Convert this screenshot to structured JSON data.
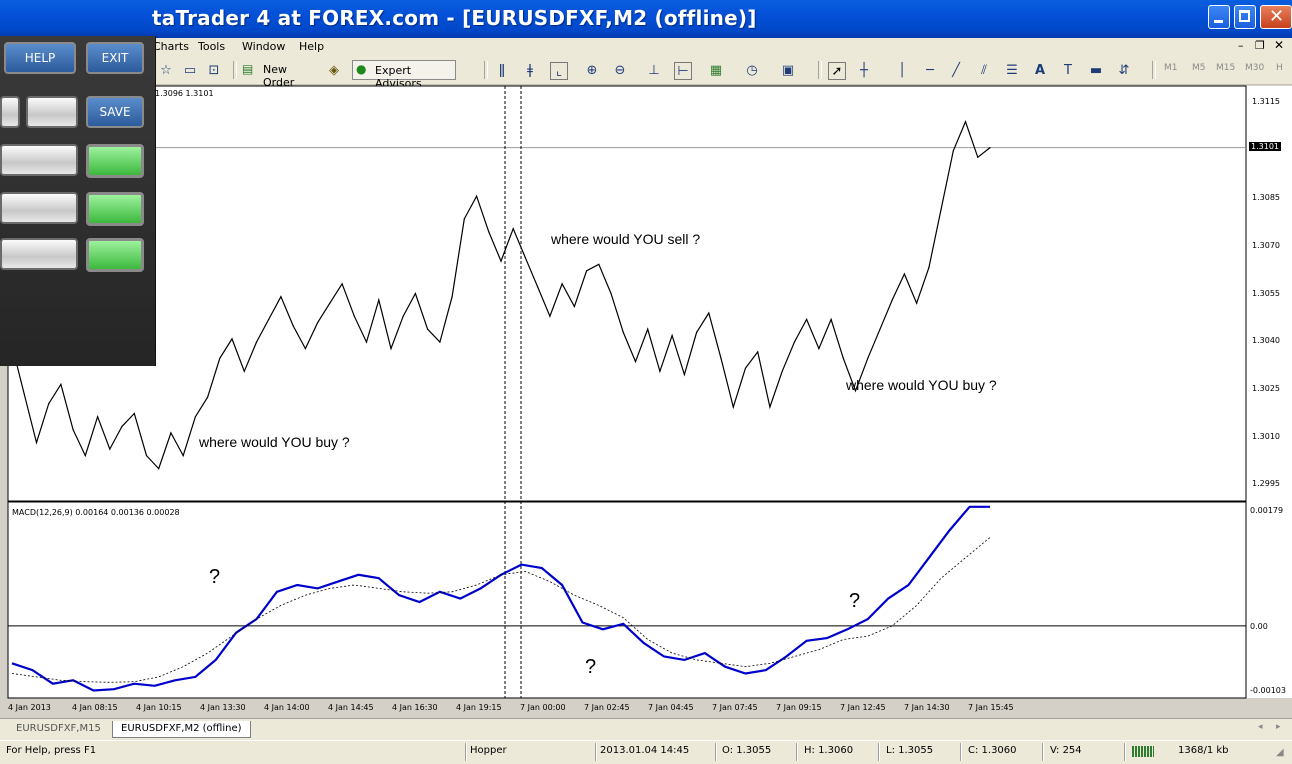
{
  "window": {
    "title": "taTrader 4 at FOREX.com - [EURUSDFXF,M2 (offline)]"
  },
  "menu": [
    "Charts",
    "Tools",
    "Window",
    "Help"
  ],
  "toolbar": {
    "new_order": "New Order",
    "expert_advisors": "Expert Advisors",
    "timeframes": [
      "M1",
      "M5",
      "M15",
      "M30",
      "H"
    ]
  },
  "panel": {
    "help": "HELP",
    "exit": "EXIT",
    "save": "SAVE"
  },
  "chart": {
    "price_header": "1.3096 1.3101",
    "macd_header": "MACD(12,26,9) 0.00164 0.00136 0.00028",
    "current_price": "1.3101",
    "price_ticks": [
      "1.3115",
      "1.3101",
      "1.3085",
      "1.3070",
      "1.3055",
      "1.3040",
      "1.3025",
      "1.3010",
      "1.2995"
    ],
    "macd_ticks": [
      "0.00179",
      "0.00",
      "-0.00103"
    ],
    "time_ticks": [
      "4 Jan 2013",
      "4 Jan 08:15",
      "4 Jan 10:15",
      "4 Jan 13:30",
      "4 Jan 14:00",
      "4 Jan 14:45",
      "4 Jan 16:30",
      "4 Jan 19:15",
      "7 Jan 00:00",
      "7 Jan 02:45",
      "7 Jan 04:45",
      "7 Jan 07:45",
      "7 Jan 09:15",
      "7 Jan 12:45",
      "7 Jan 14:30",
      "7 Jan 15:45"
    ],
    "annotations": {
      "buy1": "where would YOU buy ?",
      "sell": "where would YOU sell ?",
      "buy2": "where would YOU buy ?",
      "q": "?"
    }
  },
  "tabs": [
    "EURUSDFXF,M15",
    "EURUSDFXF,M2 (offline)"
  ],
  "status": {
    "help": "For Help, press F1",
    "profile": "Hopper",
    "time": "2013.01.04 14:45",
    "open": "O: 1.3055",
    "high": "H: 1.3060",
    "low": "L: 1.3055",
    "close": "C: 1.3060",
    "volume": "V: 254",
    "traffic": "1368/1 kb"
  },
  "chart_data": {
    "type": "line",
    "price_series": [
      1.304,
      1.3025,
      1.301,
      1.3022,
      1.3028,
      1.3014,
      1.3006,
      1.3018,
      1.3008,
      1.3015,
      1.3019,
      1.3006,
      1.3002,
      1.3013,
      1.3006,
      1.3018,
      1.3024,
      1.3036,
      1.3042,
      1.3032,
      1.3041,
      1.3048,
      1.3055,
      1.3046,
      1.3039,
      1.3047,
      1.3053,
      1.3059,
      1.3049,
      1.3041,
      1.3054,
      1.3039,
      1.3049,
      1.3056,
      1.3045,
      1.3041,
      1.3055,
      1.3079,
      1.3086,
      1.3075,
      1.3066,
      1.3076,
      1.3067,
      1.3058,
      1.3049,
      1.3059,
      1.3052,
      1.3063,
      1.3065,
      1.3056,
      1.3044,
      1.3035,
      1.3045,
      1.3032,
      1.3043,
      1.3031,
      1.3044,
      1.305,
      1.3036,
      1.3021,
      1.3033,
      1.3038,
      1.3021,
      1.3032,
      1.3041,
      1.3048,
      1.3039,
      1.3048,
      1.3036,
      1.3026,
      1.3036,
      1.3045,
      1.3054,
      1.3062,
      1.3053,
      1.3064,
      1.3082,
      1.31,
      1.3109,
      1.3098,
      1.3101
    ],
    "macd_series": [
      -0.00055,
      -0.00065,
      -0.00085,
      -0.0008,
      -0.00095,
      -0.00093,
      -0.00085,
      -0.00088,
      -0.0008,
      -0.00075,
      -0.0005,
      -0.0001,
      0.0001,
      0.0005,
      0.0006,
      0.00055,
      0.00065,
      0.00075,
      0.0007,
      0.00045,
      0.00035,
      0.0005,
      0.0004,
      0.00055,
      0.00075,
      0.0009,
      0.00085,
      0.0006,
      5e-05,
      -5e-05,
      3e-05,
      -0.00025,
      -0.00045,
      -0.0005,
      -0.0004,
      -0.0006,
      -0.0007,
      -0.00065,
      -0.00045,
      -0.00022,
      -0.00018,
      -5e-05,
      0.0001,
      0.0004,
      0.0006,
      0.001,
      0.0014,
      0.00175,
      0.00175
    ],
    "signal_series": [
      -0.0007,
      -0.00075,
      -0.0008,
      -0.00082,
      -0.00083,
      -0.00082,
      -0.00075,
      -0.0006,
      -0.0004,
      -0.00015,
      0.0001,
      0.0003,
      0.00045,
      0.00055,
      0.0006,
      0.00055,
      0.0005,
      0.00048,
      0.0005,
      0.0006,
      0.00075,
      0.0008,
      0.00065,
      0.00045,
      0.0003,
      0.00012,
      -0.0002,
      -0.0004,
      -0.0005,
      -0.00055,
      -0.0006,
      -0.00055,
      -0.00045,
      -0.00035,
      -0.0002,
      -0.00015,
      0.0,
      0.0003,
      0.0007,
      0.001,
      0.0013
    ],
    "ylim_price": [
      1.2992,
      1.312
    ],
    "ylim_macd": [
      -0.00106,
      0.00182
    ]
  }
}
